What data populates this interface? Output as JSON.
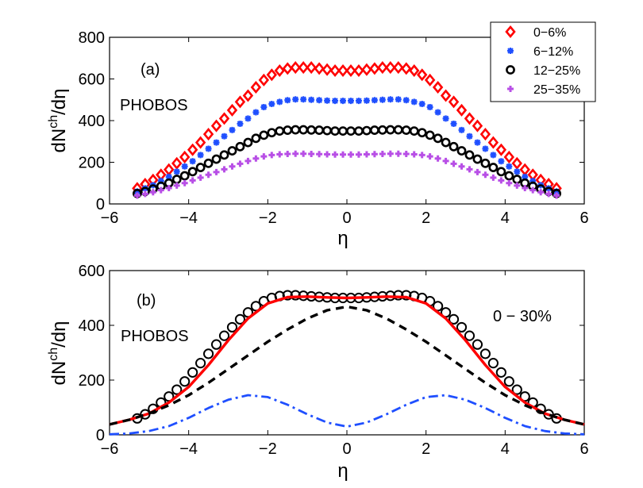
{
  "chart_data": [
    {
      "panel": "a",
      "type": "scatter",
      "xlabel": "η",
      "ylabel_base": "dN",
      "ylabel_sup": "ch",
      "ylabel_tail": "/dη",
      "xlim": [
        -6,
        6
      ],
      "ylim": [
        0,
        800
      ],
      "xticks": [
        "−6",
        "−4",
        "−2",
        "0",
        "2",
        "4",
        "6"
      ],
      "yticks": [
        "0",
        "200",
        "400",
        "600",
        "800"
      ],
      "annotations": {
        "panel_label": "(a)",
        "experiment": "PHOBOS"
      },
      "legend_position": "top-right",
      "grid": false,
      "series": [
        {
          "name": "0−6%",
          "color": "#ff0000",
          "marker": "diamond",
          "x": [
            -5.3,
            -5.1,
            -4.9,
            -4.7,
            -4.5,
            -4.3,
            -4.1,
            -3.9,
            -3.7,
            -3.5,
            -3.3,
            -3.1,
            -2.9,
            -2.7,
            -2.5,
            -2.3,
            -2.1,
            -1.9,
            -1.7,
            -1.5,
            -1.3,
            -1.1,
            -0.9,
            -0.7,
            -0.5,
            -0.3,
            -0.1,
            0.1,
            0.3,
            0.5,
            0.7,
            0.9,
            1.1,
            1.3,
            1.5,
            1.7,
            1.9,
            2.1,
            2.3,
            2.5,
            2.7,
            2.9,
            3.1,
            3.3,
            3.5,
            3.7,
            3.9,
            4.1,
            4.3,
            4.5,
            4.7,
            4.9,
            5.1,
            5.3
          ],
          "y": [
            75,
            95,
            115,
            140,
            165,
            195,
            225,
            260,
            295,
            335,
            375,
            410,
            450,
            490,
            520,
            560,
            595,
            620,
            640,
            650,
            655,
            655,
            655,
            650,
            645,
            640,
            640,
            640,
            640,
            645,
            650,
            655,
            655,
            655,
            650,
            640,
            620,
            595,
            560,
            520,
            490,
            450,
            410,
            375,
            335,
            295,
            260,
            225,
            195,
            165,
            140,
            115,
            95,
            75
          ]
        },
        {
          "name": "6−12%",
          "color": "#1f4fff",
          "marker": "asterisk",
          "x": [
            -5.3,
            -5.1,
            -4.9,
            -4.7,
            -4.5,
            -4.3,
            -4.1,
            -3.9,
            -3.7,
            -3.5,
            -3.3,
            -3.1,
            -2.9,
            -2.7,
            -2.5,
            -2.3,
            -2.1,
            -1.9,
            -1.7,
            -1.5,
            -1.3,
            -1.1,
            -0.9,
            -0.7,
            -0.5,
            -0.3,
            -0.1,
            0.1,
            0.3,
            0.5,
            0.7,
            0.9,
            1.1,
            1.3,
            1.5,
            1.7,
            1.9,
            2.1,
            2.3,
            2.5,
            2.7,
            2.9,
            3.1,
            3.3,
            3.5,
            3.7,
            3.9,
            4.1,
            4.3,
            4.5,
            4.7,
            4.9,
            5.1,
            5.3
          ],
          "y": [
            60,
            75,
            90,
            110,
            130,
            155,
            180,
            205,
            235,
            265,
            295,
            325,
            355,
            385,
            410,
            440,
            465,
            480,
            490,
            498,
            502,
            502,
            500,
            498,
            496,
            495,
            495,
            495,
            495,
            496,
            498,
            500,
            502,
            502,
            498,
            490,
            480,
            465,
            440,
            410,
            385,
            355,
            325,
            295,
            265,
            235,
            205,
            180,
            155,
            130,
            110,
            90,
            75,
            60
          ]
        },
        {
          "name": "12−25%",
          "color": "#000000",
          "marker": "circle",
          "x": [
            -5.3,
            -5.1,
            -4.9,
            -4.7,
            -4.5,
            -4.3,
            -4.1,
            -3.9,
            -3.7,
            -3.5,
            -3.3,
            -3.1,
            -2.9,
            -2.7,
            -2.5,
            -2.3,
            -2.1,
            -1.9,
            -1.7,
            -1.5,
            -1.3,
            -1.1,
            -0.9,
            -0.7,
            -0.5,
            -0.3,
            -0.1,
            0.1,
            0.3,
            0.5,
            0.7,
            0.9,
            1.1,
            1.3,
            1.5,
            1.7,
            1.9,
            2.1,
            2.3,
            2.5,
            2.7,
            2.9,
            3.1,
            3.3,
            3.5,
            3.7,
            3.9,
            4.1,
            4.3,
            4.5,
            4.7,
            4.9,
            5.1,
            5.3
          ],
          "y": [
            50,
            60,
            72,
            85,
            100,
            118,
            135,
            155,
            175,
            195,
            215,
            235,
            255,
            275,
            295,
            315,
            330,
            342,
            350,
            354,
            356,
            356,
            355,
            354,
            352,
            350,
            350,
            350,
            350,
            352,
            354,
            355,
            356,
            356,
            354,
            350,
            342,
            330,
            315,
            295,
            275,
            255,
            235,
            215,
            195,
            175,
            155,
            135,
            118,
            100,
            85,
            72,
            60,
            50
          ]
        },
        {
          "name": "25−35%",
          "color": "#b84fe6",
          "marker": "plus",
          "x": [
            -5.3,
            -5.1,
            -4.9,
            -4.7,
            -4.5,
            -4.3,
            -4.1,
            -3.9,
            -3.7,
            -3.5,
            -3.3,
            -3.1,
            -2.9,
            -2.7,
            -2.5,
            -2.3,
            -2.1,
            -1.9,
            -1.7,
            -1.5,
            -1.3,
            -1.1,
            -0.9,
            -0.7,
            -0.5,
            -0.3,
            -0.1,
            0.1,
            0.3,
            0.5,
            0.7,
            0.9,
            1.1,
            1.3,
            1.5,
            1.7,
            1.9,
            2.1,
            2.3,
            2.5,
            2.7,
            2.9,
            3.1,
            3.3,
            3.5,
            3.7,
            3.9,
            4.1,
            4.3,
            4.5,
            4.7,
            4.9,
            5.1,
            5.3
          ],
          "y": [
            40,
            48,
            56,
            66,
            76,
            88,
            100,
            113,
            126,
            140,
            153,
            166,
            180,
            193,
            206,
            218,
            228,
            235,
            238,
            240,
            241,
            241,
            240,
            239,
            238,
            237,
            237,
            237,
            237,
            238,
            239,
            240,
            241,
            241,
            240,
            238,
            235,
            228,
            218,
            206,
            193,
            180,
            166,
            153,
            140,
            126,
            113,
            100,
            88,
            76,
            66,
            56,
            48,
            40
          ]
        }
      ]
    },
    {
      "panel": "b",
      "type": "line",
      "xlabel": "η",
      "ylabel_base": "dN",
      "ylabel_sup": "ch",
      "ylabel_tail": "/dη",
      "xlim": [
        -6,
        6
      ],
      "ylim": [
        0,
        600
      ],
      "xticks": [
        "−6",
        "−4",
        "−2",
        "0",
        "2",
        "4",
        "6"
      ],
      "yticks": [
        "0",
        "200",
        "400",
        "600"
      ],
      "annotations": {
        "panel_label": "(b)",
        "experiment": "PHOBOS",
        "centrality": "0 − 30%"
      },
      "grid": false,
      "series": [
        {
          "style": "open-circles",
          "color": "#000000",
          "x": [
            -5.3,
            -5.1,
            -4.9,
            -4.7,
            -4.5,
            -4.3,
            -4.1,
            -3.9,
            -3.7,
            -3.5,
            -3.3,
            -3.1,
            -2.9,
            -2.7,
            -2.5,
            -2.3,
            -2.1,
            -1.9,
            -1.7,
            -1.5,
            -1.3,
            -1.1,
            -0.9,
            -0.7,
            -0.5,
            -0.3,
            -0.1,
            0.1,
            0.3,
            0.5,
            0.7,
            0.9,
            1.1,
            1.3,
            1.5,
            1.7,
            1.9,
            2.1,
            2.3,
            2.5,
            2.7,
            2.9,
            3.1,
            3.3,
            3.5,
            3.7,
            3.9,
            4.1,
            4.3,
            4.5,
            4.7,
            4.9,
            5.1,
            5.3
          ],
          "y": [
            60,
            75,
            95,
            118,
            140,
            165,
            195,
            228,
            262,
            296,
            330,
            362,
            393,
            422,
            447,
            470,
            488,
            500,
            507,
            510,
            510,
            508,
            506,
            504,
            502,
            500,
            500,
            500,
            500,
            502,
            504,
            506,
            508,
            510,
            510,
            507,
            500,
            488,
            470,
            447,
            422,
            393,
            362,
            330,
            296,
            262,
            228,
            195,
            165,
            140,
            118,
            95,
            75,
            60
          ]
        },
        {
          "style": "solid",
          "color": "#ff0000",
          "x": [
            -6,
            -5.5,
            -5,
            -4.5,
            -4,
            -3.5,
            -3,
            -2.5,
            -2,
            -1.5,
            -1,
            -0.5,
            0,
            0.5,
            1,
            1.5,
            2,
            2.5,
            3,
            3.5,
            4,
            4.5,
            5,
            5.5,
            6
          ],
          "y": [
            38,
            55,
            78,
            118,
            175,
            255,
            345,
            425,
            480,
            503,
            505,
            502,
            500,
            502,
            505,
            503,
            480,
            425,
            345,
            255,
            175,
            118,
            78,
            55,
            38
          ]
        },
        {
          "style": "dashed",
          "color": "#000000",
          "x": [
            -6,
            -5.5,
            -5,
            -4.5,
            -4,
            -3.5,
            -3,
            -2.5,
            -2,
            -1.5,
            -1,
            -0.5,
            0,
            0.5,
            1,
            1.5,
            2,
            2.5,
            3,
            3.5,
            4,
            4.5,
            5,
            5.5,
            6
          ],
          "y": [
            38,
            55,
            78,
            108,
            145,
            190,
            240,
            290,
            340,
            385,
            425,
            455,
            468,
            455,
            425,
            385,
            340,
            290,
            240,
            190,
            145,
            108,
            78,
            55,
            38
          ]
        },
        {
          "style": "dash-dot",
          "color": "#1f4fff",
          "x": [
            -6,
            -5.5,
            -5,
            -4.5,
            -4,
            -3.5,
            -3,
            -2.5,
            -2,
            -1.5,
            -1,
            -0.5,
            0,
            0.5,
            1,
            1.5,
            2,
            2.5,
            3,
            3.5,
            4,
            4.5,
            5,
            5.5,
            6
          ],
          "y": [
            2,
            5,
            14,
            32,
            62,
            98,
            128,
            145,
            138,
            110,
            75,
            45,
            30,
            45,
            75,
            110,
            138,
            145,
            128,
            98,
            62,
            32,
            14,
            5,
            2
          ]
        }
      ]
    }
  ]
}
